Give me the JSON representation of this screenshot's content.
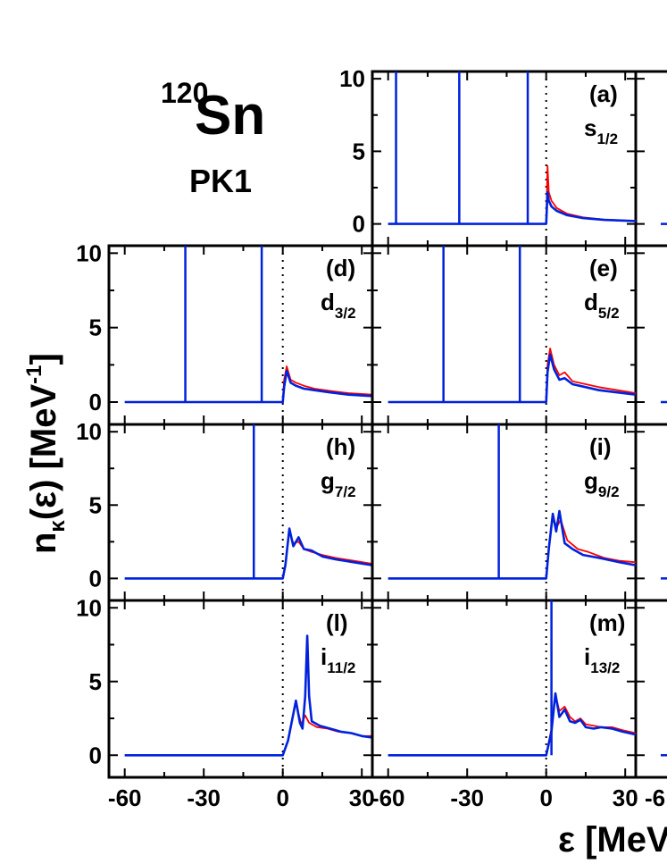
{
  "figure": {
    "nucleus_mass": "120",
    "nucleus_symbol": "Sn",
    "model": "PK1",
    "ylabel_base": "n",
    "ylabel_sub": "κ",
    "ylabel_rest": "(ε) [MeV",
    "ylabel_sup": "-1",
    "ylabel_end": "]",
    "xlabel": "ε [MeV"
  },
  "colors": {
    "red": "#ff0000",
    "blue": "#0022dd",
    "axis": "#000000"
  },
  "chart_data": {
    "type": "line",
    "xlim": [
      -66,
      34
    ],
    "ylim": [
      -1.5,
      10.5
    ],
    "x_ticks": [
      "-60",
      "-30",
      "0",
      "30"
    ],
    "x_ticks_last_col": [
      "-6"
    ],
    "y_ticks": [
      "0",
      "5",
      "10"
    ],
    "threshold_x": 0,
    "series_colors": [
      "red",
      "blue"
    ],
    "panels": [
      {
        "id": "(a)",
        "orbital": "s",
        "sub": "1/2",
        "bound_levels": [
          -57,
          -33,
          -7
        ],
        "red": [
          [
            0,
            0
          ],
          [
            0.5,
            4
          ],
          [
            1,
            2.2
          ],
          [
            2,
            1.6
          ],
          [
            4,
            1.1
          ],
          [
            8,
            0.7
          ],
          [
            14,
            0.45
          ],
          [
            22,
            0.3
          ],
          [
            34,
            0.2
          ]
        ],
        "blue": [
          [
            0,
            0
          ],
          [
            0.5,
            2.2
          ],
          [
            1,
            1.6
          ],
          [
            2,
            1.2
          ],
          [
            4,
            0.9
          ],
          [
            8,
            0.6
          ],
          [
            14,
            0.4
          ],
          [
            22,
            0.28
          ],
          [
            34,
            0.2
          ]
        ]
      },
      {
        "id": "(d)",
        "orbital": "d",
        "sub": "3/2",
        "bound_levels": [
          -37,
          -8
        ],
        "red": [
          [
            0,
            0
          ],
          [
            0.5,
            1.5
          ],
          [
            1.5,
            2.4
          ],
          [
            3,
            1.5
          ],
          [
            5,
            1.3
          ],
          [
            8,
            1.1
          ],
          [
            12,
            0.9
          ],
          [
            18,
            0.75
          ],
          [
            25,
            0.6
          ],
          [
            34,
            0.5
          ]
        ],
        "blue": [
          [
            0,
            0
          ],
          [
            0.5,
            1.0
          ],
          [
            1.5,
            2.1
          ],
          [
            3,
            1.3
          ],
          [
            5,
            1.1
          ],
          [
            8,
            0.9
          ],
          [
            12,
            0.8
          ],
          [
            18,
            0.65
          ],
          [
            25,
            0.5
          ],
          [
            34,
            0.4
          ]
        ]
      },
      {
        "id": "(e)",
        "orbital": "d",
        "sub": "5/2",
        "bound_levels": [
          -39,
          -10
        ],
        "red": [
          [
            0,
            0
          ],
          [
            0.5,
            2.5
          ],
          [
            1.5,
            3.6
          ],
          [
            3,
            2.5
          ],
          [
            5,
            1.8
          ],
          [
            7,
            2.0
          ],
          [
            10,
            1.4
          ],
          [
            15,
            1.2
          ],
          [
            20,
            1.0
          ],
          [
            27,
            0.8
          ],
          [
            34,
            0.6
          ]
        ],
        "blue": [
          [
            0,
            0
          ],
          [
            0.5,
            2.0
          ],
          [
            1.5,
            3.2
          ],
          [
            3,
            2.2
          ],
          [
            5,
            1.5
          ],
          [
            7,
            1.6
          ],
          [
            10,
            1.2
          ],
          [
            15,
            1.0
          ],
          [
            20,
            0.8
          ],
          [
            27,
            0.65
          ],
          [
            34,
            0.5
          ]
        ]
      },
      {
        "id": "(h)",
        "orbital": "g",
        "sub": "7/2",
        "bound_levels": [
          -11
        ],
        "red": [
          [
            0,
            0
          ],
          [
            1,
            1.0
          ],
          [
            2.5,
            3.2
          ],
          [
            4,
            2.4
          ],
          [
            6,
            2.5
          ],
          [
            8,
            2.0
          ],
          [
            11,
            1.8
          ],
          [
            15,
            1.6
          ],
          [
            20,
            1.4
          ],
          [
            27,
            1.2
          ],
          [
            34,
            1.0
          ]
        ],
        "blue": [
          [
            0,
            0
          ],
          [
            1,
            0.9
          ],
          [
            2.5,
            3.4
          ],
          [
            4,
            2.2
          ],
          [
            6,
            2.8
          ],
          [
            8,
            2.0
          ],
          [
            11,
            1.9
          ],
          [
            15,
            1.5
          ],
          [
            20,
            1.3
          ],
          [
            27,
            1.1
          ],
          [
            34,
            0.9
          ]
        ]
      },
      {
        "id": "(i)",
        "orbital": "g",
        "sub": "9/2",
        "bound_levels": [
          -18
        ],
        "red": [
          [
            0,
            0
          ],
          [
            1,
            2.0
          ],
          [
            2.5,
            4.2
          ],
          [
            4,
            3.5
          ],
          [
            5.5,
            4.0
          ],
          [
            8,
            2.6
          ],
          [
            12,
            2.0
          ],
          [
            16,
            1.8
          ],
          [
            22,
            1.4
          ],
          [
            28,
            1.2
          ],
          [
            34,
            1.1
          ]
        ],
        "blue": [
          [
            0,
            0
          ],
          [
            1,
            2.0
          ],
          [
            2.5,
            4.4
          ],
          [
            3.8,
            3.2
          ],
          [
            5,
            4.6
          ],
          [
            7,
            2.4
          ],
          [
            10,
            2.0
          ],
          [
            14,
            1.6
          ],
          [
            20,
            1.4
          ],
          [
            28,
            1.1
          ],
          [
            34,
            0.9
          ]
        ]
      },
      {
        "id": "(l)",
        "orbital": "i",
        "sub": "11/2",
        "bound_levels": [],
        "red": [
          [
            0,
            0
          ],
          [
            2,
            1.0
          ],
          [
            4,
            2.8
          ],
          [
            5,
            3.6
          ],
          [
            6,
            2.8
          ],
          [
            7,
            2.1
          ],
          [
            8.5,
            2.7
          ],
          [
            10,
            2.2
          ],
          [
            13,
            1.9
          ],
          [
            17,
            1.8
          ],
          [
            21,
            1.6
          ],
          [
            26,
            1.5
          ],
          [
            30,
            1.3
          ],
          [
            34,
            1.3
          ]
        ],
        "blue": [
          [
            0,
            0
          ],
          [
            2,
            1.0
          ],
          [
            4,
            2.8
          ],
          [
            5,
            3.7
          ],
          [
            6.5,
            2.2
          ],
          [
            7.5,
            1.8
          ],
          [
            8.5,
            4.0
          ],
          [
            9.3,
            8.1
          ],
          [
            10,
            4.0
          ],
          [
            11,
            2.3
          ],
          [
            14,
            2.0
          ],
          [
            18,
            1.8
          ],
          [
            22,
            1.6
          ],
          [
            26,
            1.5
          ],
          [
            30,
            1.3
          ],
          [
            34,
            1.2
          ]
        ]
      },
      {
        "id": "(m)",
        "orbital": "i",
        "sub": "13/2",
        "bound_levels": [
          2
        ],
        "red": [
          [
            0,
            0
          ],
          [
            2,
            1.8
          ],
          [
            3.5,
            4.1
          ],
          [
            5,
            3.0
          ],
          [
            7,
            3.3
          ],
          [
            9,
            2.6
          ],
          [
            11,
            2.3
          ],
          [
            13,
            2.5
          ],
          [
            15,
            2.1
          ],
          [
            18,
            2.0
          ],
          [
            21,
            1.9
          ],
          [
            25,
            1.9
          ],
          [
            29,
            1.7
          ],
          [
            34,
            1.5
          ]
        ],
        "blue": [
          [
            0,
            0
          ],
          [
            2,
            1.6
          ],
          [
            3.5,
            4.2
          ],
          [
            5,
            2.6
          ],
          [
            7,
            3.1
          ],
          [
            9,
            2.3
          ],
          [
            11,
            2.2
          ],
          [
            13,
            2.4
          ],
          [
            15,
            1.9
          ],
          [
            18,
            1.8
          ],
          [
            21,
            1.9
          ],
          [
            25,
            1.8
          ],
          [
            29,
            1.6
          ],
          [
            34,
            1.4
          ]
        ]
      }
    ]
  }
}
